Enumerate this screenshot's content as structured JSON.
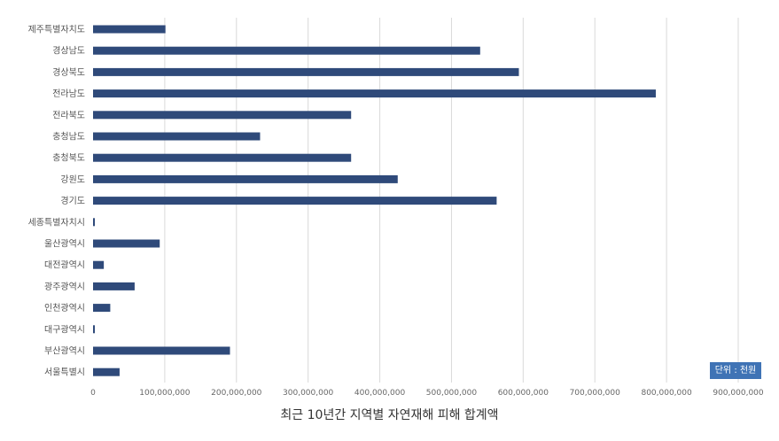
{
  "chart_data": {
    "type": "bar",
    "orientation": "horizontal",
    "title": "최근 10년간 지역별 자연재해 피해 합계액",
    "unit_label": "단위 : 천원",
    "categories": [
      "제주특별자치도",
      "경상남도",
      "경상북도",
      "전라남도",
      "전라북도",
      "충청남도",
      "충청북도",
      "강원도",
      "경기도",
      "세종특별자치시",
      "울산광역시",
      "대전광역시",
      "광주광역시",
      "인천광역시",
      "대구광역시",
      "부산광역시",
      "서울특별시"
    ],
    "values": [
      101000000,
      540000000,
      594000000,
      785000000,
      360000000,
      233000000,
      360000000,
      425000000,
      563000000,
      2500000,
      93000000,
      15000000,
      58000000,
      24000000,
      1500000,
      191000000,
      37000000
    ],
    "xlim": [
      0,
      900000000
    ],
    "xticks": [
      "0",
      "100,000,000",
      "200,000,000",
      "300,000,000",
      "400,000,000",
      "500,000,000",
      "600,000,000",
      "700,000,000",
      "800,000,000",
      "900,000,000"
    ],
    "grid": true,
    "bar_color": "#2f4a7a",
    "grid_color": "#d9d9d9"
  }
}
